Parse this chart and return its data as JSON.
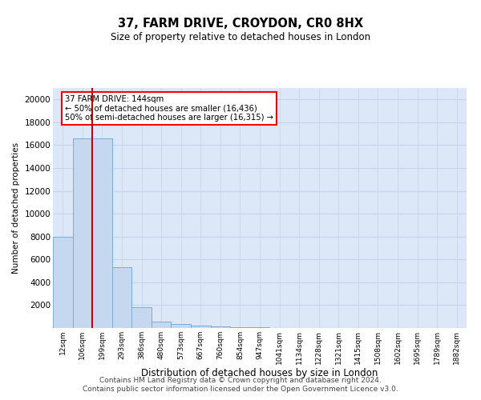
{
  "title1": "37, FARM DRIVE, CROYDON, CR0 8HX",
  "title2": "Size of property relative to detached houses in London",
  "xlabel": "Distribution of detached houses by size in London",
  "ylabel": "Number of detached properties",
  "categories": [
    "12sqm",
    "106sqm",
    "199sqm",
    "293sqm",
    "386sqm",
    "480sqm",
    "573sqm",
    "667sqm",
    "760sqm",
    "854sqm",
    "947sqm",
    "1041sqm",
    "1134sqm",
    "1228sqm",
    "1321sqm",
    "1415sqm",
    "1508sqm",
    "1602sqm",
    "1695sqm",
    "1789sqm",
    "1882sqm"
  ],
  "values": [
    8000,
    16600,
    16600,
    5300,
    1800,
    560,
    350,
    200,
    150,
    100,
    50,
    0,
    0,
    0,
    0,
    0,
    0,
    0,
    0,
    0,
    0
  ],
  "bar_color": "#c5d8f0",
  "bar_edge_color": "#7aadd4",
  "vline_x": 1.5,
  "vline_color": "#cc0000",
  "annotation_box_text": "37 FARM DRIVE: 144sqm\n← 50% of detached houses are smaller (16,436)\n50% of semi-detached houses are larger (16,315) →",
  "ylim": [
    0,
    21000
  ],
  "yticks": [
    0,
    2000,
    4000,
    6000,
    8000,
    10000,
    12000,
    14000,
    16000,
    18000,
    20000
  ],
  "grid_color": "#c8d4e8",
  "bg_color": "#dce8f8",
  "footer1": "Contains HM Land Registry data © Crown copyright and database right 2024.",
  "footer2": "Contains public sector information licensed under the Open Government Licence v3.0."
}
